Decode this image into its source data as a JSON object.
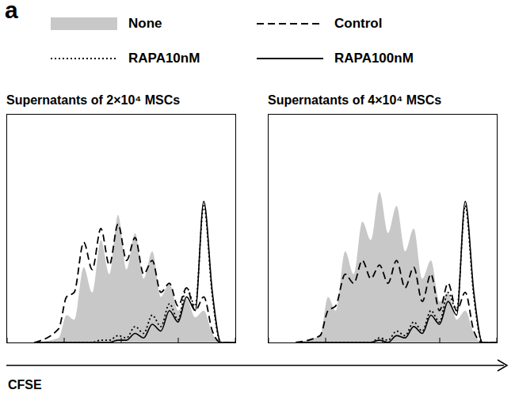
{
  "label": "a",
  "x_label": "CFSE",
  "chart_data": [
    {
      "type": "line",
      "title": "Supernatants of 2×10⁴ MSCs",
      "log": "x",
      "tick_labels": false,
      "grid": false,
      "xlim": [
        1,
        10000
      ],
      "xticks": [
        1,
        10,
        100,
        1000,
        10000
      ],
      "ylim": [
        0,
        100
      ],
      "x": [
        3,
        8,
        11,
        15,
        22,
        31,
        44,
        62,
        88,
        124,
        175,
        247,
        350,
        495,
        700,
        990,
        1400,
        1980,
        2800,
        3960,
        5600,
        10000
      ],
      "series": [
        {
          "name": "None",
          "type": "area",
          "color": "#c8c8c8",
          "values": [
            0,
            2,
            12,
            10,
            33,
            22,
            45,
            30,
            56,
            32,
            48,
            28,
            40,
            20,
            26,
            14,
            19,
            11,
            14,
            4,
            0,
            0
          ]
        },
        {
          "name": "Control",
          "type": "line",
          "line_style": "dashed",
          "color": "#000000",
          "values": [
            0,
            6,
            20,
            22,
            44,
            32,
            50,
            34,
            52,
            36,
            46,
            30,
            36,
            22,
            26,
            16,
            24,
            14,
            20,
            5,
            0,
            0
          ]
        },
        {
          "name": "RAPA10nM",
          "type": "line",
          "line_style": "dotted",
          "color": "#000000",
          "values": [
            0,
            0,
            0,
            0,
            0,
            0,
            1,
            1,
            3,
            2,
            7,
            4,
            12,
            7,
            17,
            10,
            24,
            16,
            60,
            20,
            0,
            0
          ]
        },
        {
          "name": "RAPA100nM",
          "type": "line",
          "line_style": "solid",
          "color": "#000000",
          "values": [
            0,
            0,
            0,
            0,
            0,
            0,
            0,
            0,
            1,
            1,
            4,
            2,
            8,
            5,
            14,
            9,
            20,
            14,
            62,
            22,
            0,
            0
          ]
        }
      ]
    },
    {
      "type": "line",
      "title": "Supernatants of 4×10⁴ MSCs",
      "log": "x",
      "tick_labels": false,
      "grid": false,
      "xlim": [
        1,
        10000
      ],
      "xticks": [
        1,
        10,
        100,
        1000,
        10000
      ],
      "ylim": [
        0,
        100
      ],
      "x": [
        3,
        8,
        11,
        15,
        22,
        31,
        44,
        62,
        88,
        124,
        175,
        247,
        350,
        495,
        700,
        990,
        1400,
        1980,
        2800,
        3960,
        5600,
        10000
      ],
      "series": [
        {
          "name": "None",
          "type": "area",
          "color": "#c8c8c8",
          "values": [
            0,
            3,
            20,
            14,
            40,
            30,
            53,
            45,
            66,
            48,
            60,
            40,
            50,
            28,
            36,
            18,
            22,
            10,
            14,
            4,
            0,
            0
          ]
        },
        {
          "name": "Control",
          "type": "line",
          "line_style": "dashed",
          "color": "#000000",
          "values": [
            0,
            3,
            14,
            16,
            30,
            26,
            36,
            28,
            34,
            26,
            36,
            24,
            33,
            18,
            30,
            14,
            26,
            14,
            22,
            5,
            0,
            0
          ]
        },
        {
          "name": "RAPA10nM",
          "type": "line",
          "line_style": "dotted",
          "color": "#000000",
          "values": [
            0,
            0,
            0,
            0,
            0,
            0,
            0,
            0,
            2,
            1,
            5,
            3,
            9,
            5,
            14,
            9,
            22,
            14,
            60,
            20,
            0,
            0
          ]
        },
        {
          "name": "RAPA100nM",
          "type": "line",
          "line_style": "solid",
          "color": "#000000",
          "values": [
            0,
            0,
            0,
            0,
            0,
            0,
            0,
            0,
            1,
            0,
            3,
            2,
            7,
            4,
            12,
            8,
            18,
            12,
            62,
            22,
            0,
            0
          ]
        }
      ]
    }
  ]
}
